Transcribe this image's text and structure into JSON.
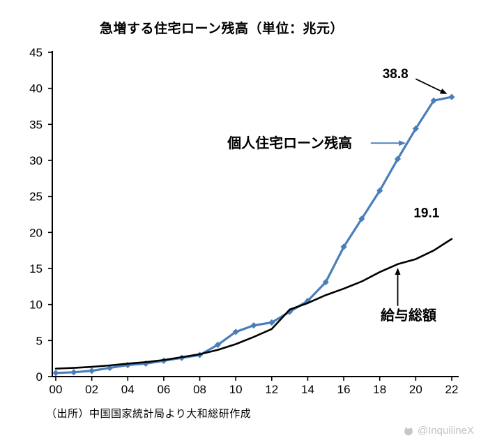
{
  "title": "急増する住宅ローン残高（単位：兆元）",
  "source": "（出所）中国国家統計局より大和総研作成",
  "watermark": "@InquilineX",
  "chart_data": {
    "type": "line",
    "title": "急増する住宅ローン残高（単位：兆元）",
    "xlabel": "",
    "ylabel": "",
    "grid": false,
    "legend_position": "none",
    "x": [
      2000,
      2001,
      2002,
      2003,
      2004,
      2005,
      2006,
      2007,
      2008,
      2009,
      2010,
      2011,
      2012,
      2013,
      2014,
      2015,
      2016,
      2017,
      2018,
      2019,
      2020,
      2021,
      2022
    ],
    "x_ticks": [
      2000,
      2002,
      2004,
      2006,
      2008,
      2010,
      2012,
      2014,
      2016,
      2018,
      2020,
      2022
    ],
    "x_tick_labels": [
      "00",
      "02",
      "04",
      "06",
      "08",
      "10",
      "12",
      "14",
      "16",
      "18",
      "20",
      "22"
    ],
    "ylim": [
      0,
      45
    ],
    "yticks": [
      0,
      5,
      10,
      15,
      20,
      25,
      30,
      35,
      40,
      45
    ],
    "series": [
      {
        "name": "個人住宅ローン残高",
        "color": "#4a7ebb",
        "marker": "diamond",
        "line_width": 3.2,
        "values": [
          0.5,
          0.6,
          0.8,
          1.2,
          1.6,
          1.8,
          2.2,
          2.6,
          3.0,
          4.4,
          6.2,
          7.1,
          7.5,
          9.0,
          10.5,
          13.1,
          18.0,
          21.9,
          25.8,
          30.2,
          34.4,
          38.3,
          38.8
        ]
      },
      {
        "name": "給与総額",
        "color": "#000000",
        "marker": "none",
        "line_width": 2.6,
        "values": [
          1.1,
          1.2,
          1.35,
          1.55,
          1.8,
          2.0,
          2.3,
          2.7,
          3.1,
          3.7,
          4.5,
          5.5,
          6.6,
          9.3,
          10.2,
          11.3,
          12.2,
          13.2,
          14.5,
          15.6,
          16.3,
          17.5,
          19.1
        ]
      }
    ],
    "annotations": [
      {
        "text": "38.8",
        "x": 2018.87,
        "y": 42.1,
        "bold": true,
        "font_size": 19,
        "arrow": {
          "x1": 2020.0,
          "y1": 41.3,
          "x2": 2021.75,
          "y2": 39.2,
          "color": "#000000"
        }
      },
      {
        "text": "個人住宅ローン残高",
        "x": 2013.0,
        "y": 32.4,
        "bold": true,
        "font_size": 20,
        "arrow": {
          "x1": 2017.5,
          "y1": 32.4,
          "x2": 2019.45,
          "y2": 32.4,
          "color": "#4a7ebb"
        }
      },
      {
        "text": "19.1",
        "x": 2020.6,
        "y": 22.8,
        "bold": true,
        "font_size": 19,
        "arrow": null
      },
      {
        "text": "給与総額",
        "x": 2019.6,
        "y": 8.5,
        "bold": true,
        "font_size": 20,
        "arrow": {
          "x1": 2019.0,
          "y1": 9.8,
          "x2": 2019.0,
          "y2": 15.1,
          "color": "#000000"
        }
      }
    ]
  }
}
